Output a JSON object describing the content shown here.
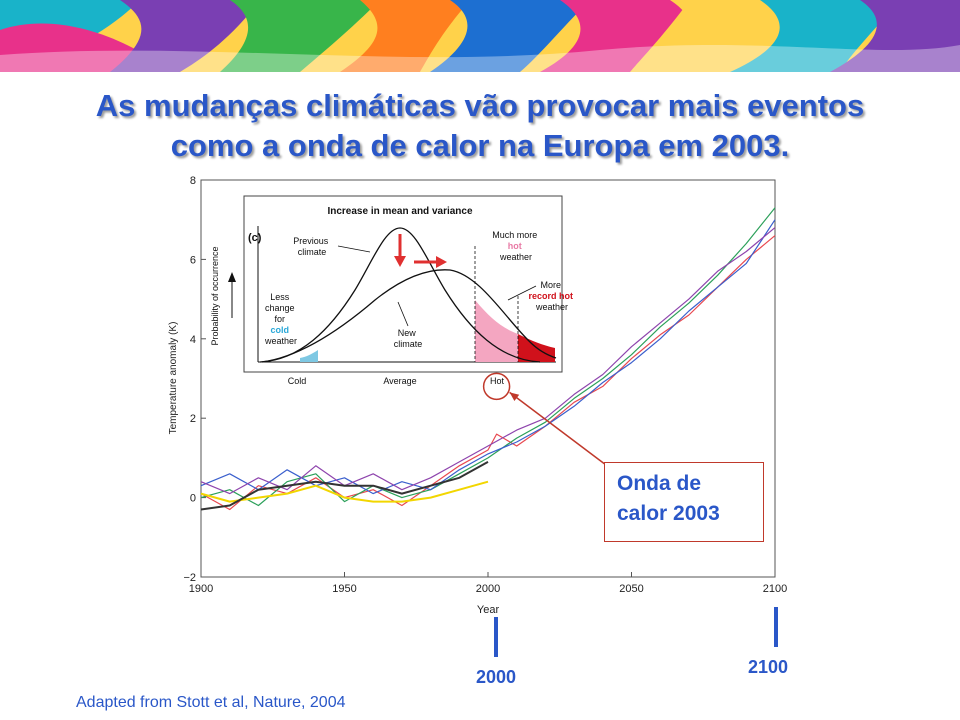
{
  "slide": {
    "title_line1": "As mudanças climáticas vão provocar mais eventos",
    "title_line2": "como a onda de calor na Europa em 2003.",
    "credit": "Adapted from Stott et al, Nature, 2004",
    "annotation_line1": "Onda de",
    "annotation_line2": "calor 2003",
    "marker_2000": "2000",
    "marker_2100": "2100",
    "accent_color": "#2a57c8",
    "annotation_color": "#c0392b"
  },
  "chart_data": [
    {
      "type": "line",
      "xlabel": "Year",
      "ylabel": "Temperature anomaly (K)",
      "xlim": [
        1900,
        2100
      ],
      "ylim": [
        -2,
        8
      ],
      "x_ticks": [
        "1900",
        "1950",
        "2000",
        "2050",
        "2100"
      ],
      "y_ticks": [
        "−2",
        "0",
        "2",
        "4",
        "6",
        "8"
      ],
      "series": [
        {
          "color": "#e8484f",
          "x": [
            1900,
            1910,
            1920,
            1930,
            1940,
            1950,
            1960,
            1970,
            1980,
            1990,
            2000,
            2003,
            2010,
            2020,
            2030,
            2040,
            2050,
            2060,
            2070,
            2080,
            2090,
            2100
          ],
          "values": [
            0.1,
            -0.3,
            0.3,
            0.1,
            0.5,
            0.0,
            0.2,
            -0.2,
            0.3,
            0.8,
            1.2,
            1.6,
            1.3,
            1.8,
            2.4,
            2.8,
            3.5,
            4.1,
            4.6,
            5.3,
            6.0,
            6.6
          ]
        },
        {
          "color": "#2ca05a",
          "x": [
            1900,
            1910,
            1920,
            1930,
            1940,
            1950,
            1960,
            1970,
            1980,
            1990,
            2000,
            2010,
            2020,
            2030,
            2040,
            2050,
            2060,
            2070,
            2080,
            2090,
            2100
          ],
          "values": [
            0.0,
            0.2,
            -0.2,
            0.4,
            0.6,
            -0.1,
            0.3,
            0.0,
            0.2,
            0.6,
            1.0,
            1.5,
            1.9,
            2.5,
            3.0,
            3.6,
            4.3,
            4.9,
            5.6,
            6.4,
            7.3
          ]
        },
        {
          "color": "#3a5fcd",
          "x": [
            1900,
            1910,
            1920,
            1930,
            1940,
            1950,
            1960,
            1970,
            1980,
            1990,
            2000,
            2010,
            2020,
            2030,
            2040,
            2050,
            2060,
            2070,
            2080,
            2090,
            2100
          ],
          "values": [
            0.3,
            0.6,
            0.2,
            0.7,
            0.3,
            0.5,
            0.1,
            0.4,
            0.2,
            0.7,
            1.1,
            1.4,
            1.8,
            2.3,
            2.9,
            3.4,
            4.0,
            4.7,
            5.3,
            5.9,
            7.0
          ]
        },
        {
          "color": "#8e44ad",
          "x": [
            1900,
            1910,
            1920,
            1930,
            1940,
            1950,
            1960,
            1970,
            1980,
            1990,
            2000,
            2010,
            2020,
            2030,
            2040,
            2050,
            2060,
            2070,
            2080,
            2090,
            2100
          ],
          "values": [
            0.4,
            0.1,
            0.5,
            0.2,
            0.8,
            0.3,
            0.6,
            0.2,
            0.5,
            0.9,
            1.3,
            1.7,
            2.0,
            2.6,
            3.1,
            3.8,
            4.4,
            5.0,
            5.7,
            6.2,
            6.8
          ]
        },
        {
          "color": "#f2d600",
          "x": [
            1900,
            1910,
            1920,
            1930,
            1940,
            1950,
            1960,
            1970,
            1980,
            1990,
            2000
          ],
          "values": [
            0.1,
            -0.1,
            0.0,
            0.1,
            0.3,
            0.0,
            -0.1,
            -0.1,
            0.0,
            0.2,
            0.4
          ]
        },
        {
          "color": "#333333",
          "x": [
            1900,
            1910,
            1920,
            1930,
            1940,
            1950,
            1960,
            1970,
            1980,
            1990,
            2000
          ],
          "values": [
            -0.3,
            -0.2,
            0.2,
            0.3,
            0.4,
            0.3,
            0.3,
            0.1,
            0.3,
            0.5,
            0.9
          ]
        }
      ],
      "highlight_point": {
        "x": 2003,
        "y": 2.8
      }
    },
    {
      "type": "line",
      "panel_label": "(c)",
      "title": "Increase in mean and variance",
      "ylabel": "Probability of occurrence",
      "x_ticks": [
        "Cold",
        "Average",
        "Hot"
      ],
      "annotations": {
        "previous": [
          "Previous",
          "climate"
        ],
        "new": [
          "New",
          "climate"
        ],
        "less": [
          "Less",
          "change",
          "for"
        ],
        "cold_word": "cold",
        "less_end": "weather",
        "much_more": "Much more",
        "hot_word": "hot",
        "much_more_end": "weather",
        "more": "More",
        "record_hot": "record hot",
        "more_end": "weather"
      },
      "colors": {
        "cold_fill": "#7ec8e3",
        "hot_fill": "#f4a6c1",
        "record_fill": "#d0111b",
        "arrow": "#e03030"
      }
    }
  ]
}
